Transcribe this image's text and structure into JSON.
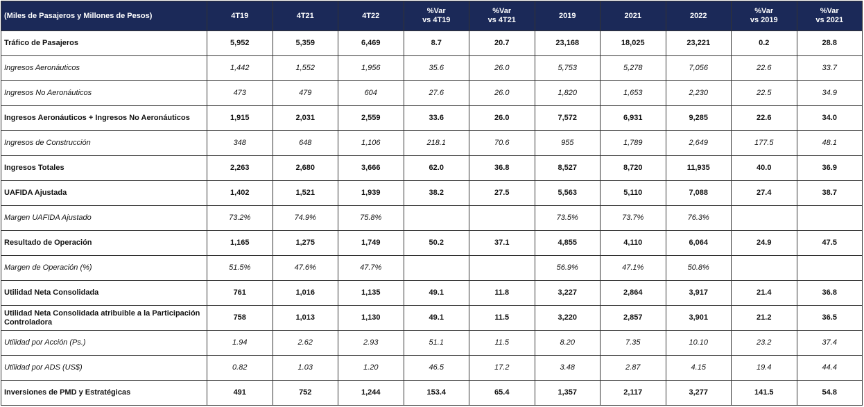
{
  "table": {
    "header": [
      "(Miles de Pasajeros y Millones de Pesos)",
      "4T19",
      "4T21",
      "4T22",
      "%Var\nvs 4T19",
      "%Var\nvs 4T21",
      "2019",
      "2021",
      "2022",
      "%Var\nvs 2019",
      "%Var\nvs 2021"
    ],
    "rows": [
      {
        "bold": true,
        "cells": [
          "Tráfico de Pasajeros",
          "5,952",
          "5,359",
          "6,469",
          "8.7",
          "20.7",
          "23,168",
          "18,025",
          "23,221",
          "0.2",
          "28.8"
        ]
      },
      {
        "bold": false,
        "cells": [
          "Ingresos Aeronáuticos",
          "1,442",
          "1,552",
          "1,956",
          "35.6",
          "26.0",
          "5,753",
          "5,278",
          "7,056",
          "22.6",
          "33.7"
        ]
      },
      {
        "bold": false,
        "cells": [
          "Ingresos No Aeronáuticos",
          "473",
          "479",
          "604",
          "27.6",
          "26.0",
          "1,820",
          "1,653",
          "2,230",
          "22.5",
          "34.9"
        ]
      },
      {
        "bold": true,
        "cells": [
          "Ingresos Aeronáuticos + Ingresos No Aeronáuticos",
          "1,915",
          "2,031",
          "2,559",
          "33.6",
          "26.0",
          "7,572",
          "6,931",
          "9,285",
          "22.6",
          "34.0"
        ]
      },
      {
        "bold": false,
        "cells": [
          "Ingresos de Construcción",
          "348",
          "648",
          "1,106",
          "218.1",
          "70.6",
          "955",
          "1,789",
          "2,649",
          "177.5",
          "48.1"
        ]
      },
      {
        "bold": true,
        "cells": [
          "Ingresos Totales",
          "2,263",
          "2,680",
          "3,666",
          "62.0",
          "36.8",
          "8,527",
          "8,720",
          "11,935",
          "40.0",
          "36.9"
        ]
      },
      {
        "bold": true,
        "cells": [
          "UAFIDA Ajustada",
          "1,402",
          "1,521",
          "1,939",
          "38.2",
          "27.5",
          "5,563",
          "5,110",
          "7,088",
          "27.4",
          "38.7"
        ]
      },
      {
        "bold": false,
        "cells": [
          "Margen UAFIDA Ajustado",
          "73.2%",
          "74.9%",
          "75.8%",
          null,
          null,
          "73.5%",
          "73.7%",
          "76.3%",
          null,
          null
        ]
      },
      {
        "bold": true,
        "cells": [
          "Resultado de Operación",
          "1,165",
          "1,275",
          "1,749",
          "50.2",
          "37.1",
          "4,855",
          "4,110",
          "6,064",
          "24.9",
          "47.5"
        ]
      },
      {
        "bold": false,
        "cells": [
          "Margen de Operación (%)",
          "51.5%",
          "47.6%",
          "47.7%",
          null,
          null,
          "56.9%",
          "47.1%",
          "50.8%",
          null,
          null
        ]
      },
      {
        "bold": true,
        "cells": [
          "Utilidad Neta Consolidada",
          "761",
          "1,016",
          "1,135",
          "49.1",
          "11.8",
          "3,227",
          "2,864",
          "3,917",
          "21.4",
          "36.8"
        ]
      },
      {
        "bold": true,
        "cells": [
          "Utilidad Neta Consolidada atribuible a la Participación Controladora",
          "758",
          "1,013",
          "1,130",
          "49.1",
          "11.5",
          "3,220",
          "2,857",
          "3,901",
          "21.2",
          "36.5"
        ]
      },
      {
        "bold": false,
        "cells": [
          "Utilidad por Acción (Ps.)",
          "1.94",
          "2.62",
          "2.93",
          "51.1",
          "11.5",
          "8.20",
          "7.35",
          "10.10",
          "23.2",
          "37.4"
        ]
      },
      {
        "bold": false,
        "cells": [
          "Utilidad por ADS (US$)",
          "0.82",
          "1.03",
          "1.20",
          "46.5",
          "17.2",
          "3.48",
          "2.87",
          "4.15",
          "19.4",
          "44.4"
        ]
      },
      {
        "bold": true,
        "cells": [
          "Inversiones de PMD y Estratégicas",
          "491",
          "752",
          "1,244",
          "153.4",
          "65.4",
          "1,357",
          "2,117",
          "3,277",
          "141.5",
          "54.8"
        ]
      }
    ]
  }
}
